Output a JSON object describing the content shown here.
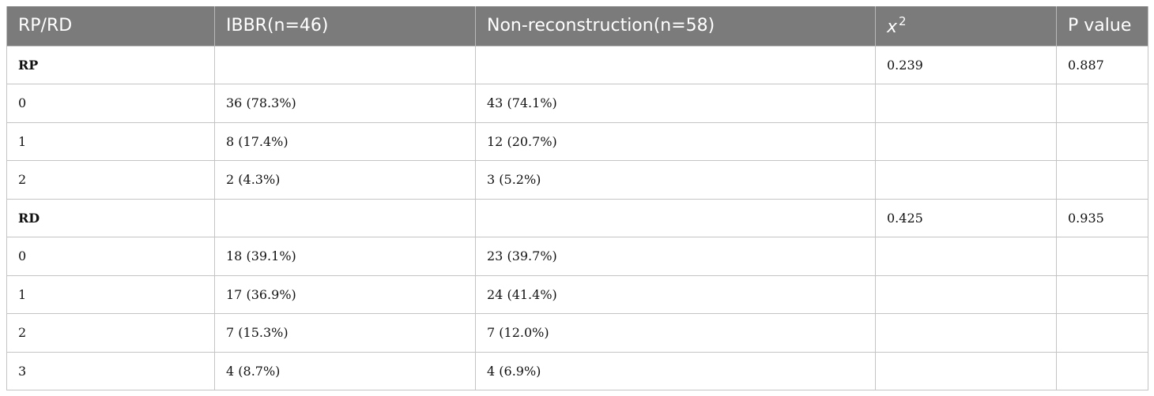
{
  "table": {
    "headers": {
      "col1": "RP/RD",
      "col2": "IBBR(n=46)",
      "col3": "Non-reconstruction(n=58)",
      "col4_base": "x",
      "col4_sup": "2",
      "col5": "P value"
    },
    "rows": [
      {
        "label": "RP",
        "ibbr": "",
        "nonrecon": "",
        "chi": "0.239",
        "p": "0.887",
        "section": true
      },
      {
        "label": "0",
        "ibbr": "36 (78.3%)",
        "nonrecon": "43 (74.1%)",
        "chi": "",
        "p": ""
      },
      {
        "label": "1",
        "ibbr": "8 (17.4%)",
        "nonrecon": "12 (20.7%)",
        "chi": "",
        "p": ""
      },
      {
        "label": "2",
        "ibbr": "2 (4.3%)",
        "nonrecon": "3 (5.2%)",
        "chi": "",
        "p": ""
      },
      {
        "label": "RD",
        "ibbr": "",
        "nonrecon": "",
        "chi": "0.425",
        "p": "0.935",
        "section": true
      },
      {
        "label": "0",
        "ibbr": "18 (39.1%)",
        "nonrecon": "23 (39.7%)",
        "chi": "",
        "p": ""
      },
      {
        "label": "1",
        "ibbr": "17 (36.9%)",
        "nonrecon": "24 (41.4%)",
        "chi": "",
        "p": ""
      },
      {
        "label": "2",
        "ibbr": "7 (15.3%)",
        "nonrecon": "7 (12.0%)",
        "chi": "",
        "p": ""
      },
      {
        "label": "3",
        "ibbr": "4 (8.7%)",
        "nonrecon": "4 (6.9%)",
        "chi": "",
        "p": ""
      }
    ]
  }
}
